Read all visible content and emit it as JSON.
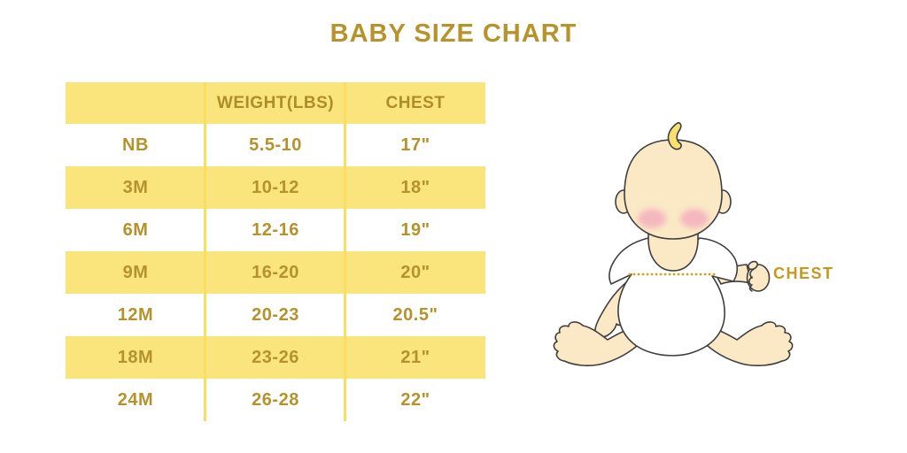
{
  "title": "BABY SIZE CHART",
  "chart_data": {
    "type": "table",
    "title": "BABY SIZE CHART",
    "columns": [
      "",
      "WEIGHT(LBS)",
      "CHEST"
    ],
    "rows": [
      [
        "NB",
        "5.5-10",
        "17\""
      ],
      [
        "3M",
        "10-12",
        "18\""
      ],
      [
        "6M",
        "12-16",
        "19\""
      ],
      [
        "9M",
        "16-20",
        "20\""
      ],
      [
        "12M",
        "20-23",
        "20.5\""
      ],
      [
        "18M",
        "23-26",
        "21\""
      ],
      [
        "24M",
        "26-28",
        "22\""
      ]
    ],
    "annotation": "CHEST",
    "legend_position": "none",
    "grid": "column-separators-only"
  },
  "illustration": {
    "chest_label": "CHEST",
    "subject": "sitting-baby-in-white-onesie",
    "chest_line_style": "dotted"
  },
  "colors": {
    "row_yellow": "#FAE57D",
    "separator_yellow": "#F9DE62",
    "text_gold": "#B5922B",
    "title_gold": "#B6932B",
    "label_gold": "#C7981E",
    "dotted_line_gold": "#D3A31F",
    "skin": "#FBE9C5",
    "blush_pink": "#F2A8BC",
    "hair_yellow": "#F9E170",
    "outline": "#3E3E3E",
    "background": "#FFFFFF"
  }
}
